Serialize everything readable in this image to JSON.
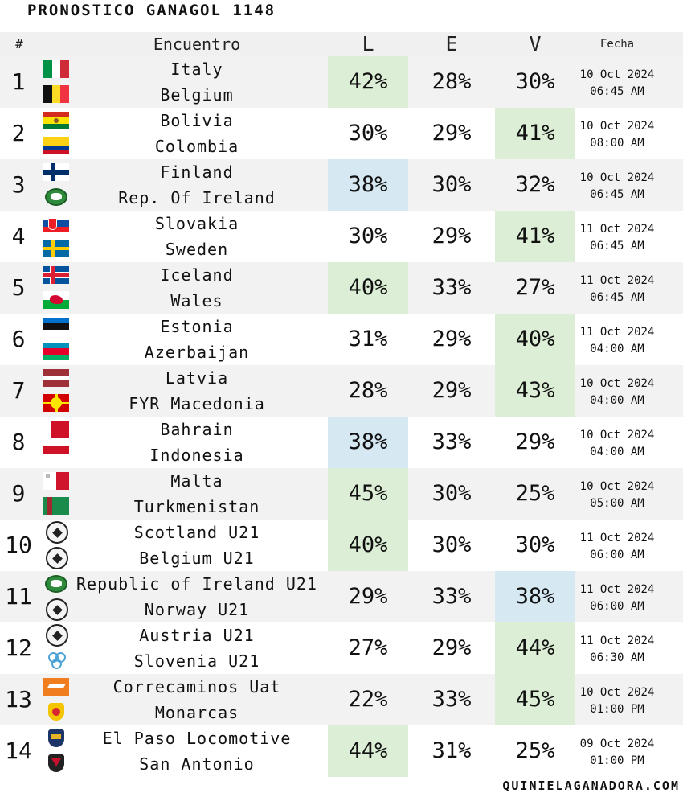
{
  "title": "PRONOSTICO GANAGOL 1148",
  "headers": {
    "num": "#",
    "match": "Encuentro",
    "l": "L",
    "e": "E",
    "v": "V",
    "date": "Fecha"
  },
  "rows": [
    {
      "num": "1",
      "home": "Italy",
      "away": "Belgium",
      "l": "42%",
      "e": "28%",
      "v": "30%",
      "date": "10 Oct 2024",
      "time": "06:45 AM",
      "highlight": "l",
      "hl_color": "green",
      "home_icon": "italy-flag-icon",
      "away_icon": "belgium-flag-icon"
    },
    {
      "num": "2",
      "home": "Bolivia",
      "away": "Colombia",
      "l": "30%",
      "e": "29%",
      "v": "41%",
      "date": "10 Oct 2024",
      "time": "08:00 AM",
      "highlight": "v",
      "hl_color": "green",
      "home_icon": "bolivia-flag-icon",
      "away_icon": "colombia-flag-icon"
    },
    {
      "num": "3",
      "home": "Finland",
      "away": "Rep. Of Ireland",
      "l": "38%",
      "e": "30%",
      "v": "32%",
      "date": "10 Oct 2024",
      "time": "06:45 AM",
      "highlight": "l",
      "hl_color": "blue",
      "home_icon": "finland-flag-icon",
      "away_icon": "ireland-crest-icon"
    },
    {
      "num": "4",
      "home": "Slovakia",
      "away": "Sweden",
      "l": "30%",
      "e": "29%",
      "v": "41%",
      "date": "11 Oct 2024",
      "time": "06:45 AM",
      "highlight": "v",
      "hl_color": "green",
      "home_icon": "slovakia-flag-icon",
      "away_icon": "sweden-flag-icon"
    },
    {
      "num": "5",
      "home": "Iceland",
      "away": "Wales",
      "l": "40%",
      "e": "33%",
      "v": "27%",
      "date": "11 Oct 2024",
      "time": "06:45 AM",
      "highlight": "l",
      "hl_color": "green",
      "home_icon": "iceland-flag-icon",
      "away_icon": "wales-flag-icon"
    },
    {
      "num": "6",
      "home": "Estonia",
      "away": "Azerbaijan",
      "l": "31%",
      "e": "29%",
      "v": "40%",
      "date": "11 Oct 2024",
      "time": "04:00 AM",
      "highlight": "v",
      "hl_color": "green",
      "home_icon": "estonia-flag-icon",
      "away_icon": "azerbaijan-flag-icon"
    },
    {
      "num": "7",
      "home": "Latvia",
      "away": "FYR Macedonia",
      "l": "28%",
      "e": "29%",
      "v": "43%",
      "date": "10 Oct 2024",
      "time": "04:00 AM",
      "highlight": "v",
      "hl_color": "green",
      "home_icon": "latvia-flag-icon",
      "away_icon": "macedonia-flag-icon"
    },
    {
      "num": "8",
      "home": "Bahrain",
      "away": "Indonesia",
      "l": "38%",
      "e": "33%",
      "v": "29%",
      "date": "10 Oct 2024",
      "time": "04:00 AM",
      "highlight": "l",
      "hl_color": "blue",
      "home_icon": "bahrain-flag-icon",
      "away_icon": "indonesia-flag-icon"
    },
    {
      "num": "9",
      "home": "Malta",
      "away": "Turkmenistan",
      "l": "45%",
      "e": "30%",
      "v": "25%",
      "date": "10 Oct 2024",
      "time": "05:00 AM",
      "highlight": "l",
      "hl_color": "green",
      "home_icon": "malta-flag-icon",
      "away_icon": "turkmenistan-flag-icon"
    },
    {
      "num": "10",
      "home": "Scotland U21",
      "away": "Belgium U21",
      "l": "40%",
      "e": "30%",
      "v": "30%",
      "date": "11 Oct 2024",
      "time": "06:00 AM",
      "highlight": "l",
      "hl_color": "green",
      "home_icon": "soccer-ball-icon",
      "away_icon": "soccer-ball-icon"
    },
    {
      "num": "11",
      "home": "Republic of Ireland U21",
      "away": "Norway U21",
      "l": "29%",
      "e": "33%",
      "v": "38%",
      "date": "11 Oct 2024",
      "time": "06:00 AM",
      "highlight": "v",
      "hl_color": "blue",
      "home_icon": "ireland-crest-icon",
      "away_icon": "soccer-ball-icon"
    },
    {
      "num": "12",
      "home": "Austria U21",
      "away": "Slovenia U21",
      "l": "27%",
      "e": "29%",
      "v": "44%",
      "date": "11 Oct 2024",
      "time": "06:30 AM",
      "highlight": "v",
      "hl_color": "green",
      "home_icon": "soccer-ball-icon",
      "away_icon": "slovenia-crest-icon"
    },
    {
      "num": "13",
      "home": "Correcaminos Uat",
      "away": "Monarcas",
      "l": "22%",
      "e": "33%",
      "v": "45%",
      "date": "10 Oct 2024",
      "time": "01:00 PM",
      "highlight": "v",
      "hl_color": "green",
      "home_icon": "correcaminos-crest-icon",
      "away_icon": "monarcas-crest-icon"
    },
    {
      "num": "14",
      "home": "El Paso Locomotive",
      "away": "San Antonio",
      "l": "44%",
      "e": "31%",
      "v": "25%",
      "date": "09 Oct 2024",
      "time": "01:00 PM",
      "highlight": "l",
      "hl_color": "green",
      "home_icon": "el-paso-crest-icon",
      "away_icon": "san-antonio-crest-icon"
    }
  ],
  "footer": {
    "site": "QUINIELAGANADORA.COM"
  }
}
